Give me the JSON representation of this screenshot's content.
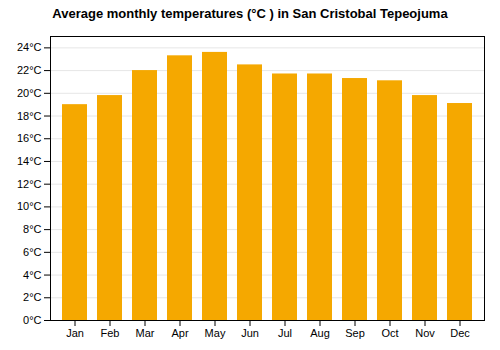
{
  "chart_data": {
    "type": "bar",
    "title": "Average monthly temperatures (°C ) in San Cristobal Tepeojuma",
    "categories": [
      "Jan",
      "Feb",
      "Mar",
      "Apr",
      "May",
      "Jun",
      "Jul",
      "Aug",
      "Sep",
      "Oct",
      "Nov",
      "Dec"
    ],
    "values": [
      19.0,
      19.8,
      22.0,
      23.3,
      23.6,
      22.5,
      21.7,
      21.7,
      21.3,
      21.1,
      19.8,
      19.1
    ],
    "color": "#F5A800",
    "ylim": [
      0,
      25
    ],
    "yticks": [
      {
        "value": 0,
        "label": "0°C"
      },
      {
        "value": 2,
        "label": "2°C"
      },
      {
        "value": 4,
        "label": "4°C"
      },
      {
        "value": 6,
        "label": "6°C"
      },
      {
        "value": 8,
        "label": "8°C"
      },
      {
        "value": 10,
        "label": "10°C"
      },
      {
        "value": 12,
        "label": "12°C"
      },
      {
        "value": 14,
        "label": "14°C"
      },
      {
        "value": 16,
        "label": "16°C"
      },
      {
        "value": 18,
        "label": "18°C"
      },
      {
        "value": 20,
        "label": "20°C"
      },
      {
        "value": 22,
        "label": "22°C"
      },
      {
        "value": 24,
        "label": "24°C"
      }
    ],
    "grid": true
  }
}
